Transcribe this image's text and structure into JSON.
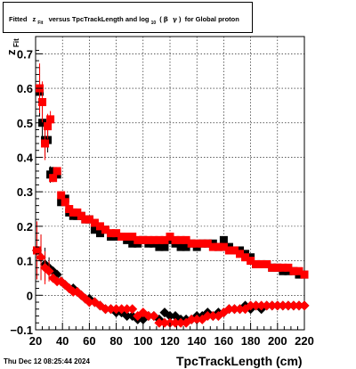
{
  "chart_data": {
    "type": "scatter",
    "title": {
      "prefix": "Fitted",
      "z": "z",
      "z_sub": "Fit",
      "middle": "versus TpcTrackLength and log",
      "log_sub": "10",
      "paren_open": "(",
      "beta": "β",
      "gamma": "γ",
      "paren_close": ")",
      "suffix": "for Global proton"
    },
    "xlabel": "TpcTrackLength (cm)",
    "ylabel": "z",
    "ylabel_sub": "Fit",
    "xlim": [
      20,
      220
    ],
    "ylim": [
      -0.1,
      0.75
    ],
    "x_ticks": [
      20,
      40,
      60,
      80,
      100,
      120,
      140,
      160,
      180,
      200,
      220
    ],
    "y_ticks": [
      -0.1,
      0,
      0.1,
      0.2,
      0.3,
      0.4,
      0.5,
      0.6,
      0.7
    ],
    "y_tick_labels": [
      "−0.1",
      "0",
      "0.1",
      "0.2",
      "0.3",
      "0.4",
      "0.5",
      "0.6",
      "0.7"
    ],
    "grid": true,
    "colors": {
      "black": "#000000",
      "red": "#ff0000"
    },
    "series": [
      {
        "color": "#000000",
        "marker": "square",
        "points": [
          [
            21,
            0.13
          ],
          [
            23,
            0.59
          ],
          [
            25,
            0.5
          ],
          [
            27,
            0.45
          ],
          [
            29,
            0.45
          ],
          [
            31,
            0.35
          ],
          [
            33,
            0.36
          ],
          [
            36,
            0.35
          ],
          [
            39,
            0.27
          ],
          [
            42,
            0.28
          ],
          [
            45,
            0.24
          ],
          [
            48,
            0.23
          ],
          [
            51,
            0.23
          ],
          [
            54,
            0.23
          ],
          [
            57,
            0.22
          ],
          [
            60,
            0.22
          ],
          [
            64,
            0.19
          ],
          [
            68,
            0.18
          ],
          [
            72,
            0.19
          ],
          [
            76,
            0.17
          ],
          [
            80,
            0.17
          ],
          [
            84,
            0.17
          ],
          [
            88,
            0.16
          ],
          [
            92,
            0.15
          ],
          [
            96,
            0.15
          ],
          [
            100,
            0.16
          ],
          [
            104,
            0.15
          ],
          [
            108,
            0.15
          ],
          [
            112,
            0.14
          ],
          [
            116,
            0.14
          ],
          [
            120,
            0.16
          ],
          [
            124,
            0.15
          ],
          [
            128,
            0.14
          ],
          [
            132,
            0.14
          ],
          [
            136,
            0.15
          ],
          [
            140,
            0.14
          ],
          [
            144,
            0.15
          ],
          [
            148,
            0.15
          ],
          [
            152,
            0.15
          ],
          [
            156,
            0.14
          ],
          [
            160,
            0.16
          ],
          [
            164,
            0.14
          ],
          [
            168,
            0.13
          ],
          [
            172,
            0.13
          ],
          [
            176,
            0.12
          ],
          [
            180,
            0.11
          ],
          [
            184,
            0.09
          ],
          [
            188,
            0.09
          ],
          [
            192,
            0.09
          ],
          [
            196,
            0.08
          ],
          [
            200,
            0.08
          ],
          [
            204,
            0.07
          ],
          [
            208,
            0.07
          ],
          [
            212,
            0.07
          ],
          [
            216,
            0.06
          ],
          [
            220,
            0.06
          ]
        ]
      },
      {
        "color": "#ff0000",
        "marker": "square",
        "points": [
          [
            21,
            0.13
          ],
          [
            23,
            0.6
          ],
          [
            25,
            0.56
          ],
          [
            27,
            0.44
          ],
          [
            29,
            0.49
          ],
          [
            31,
            0.51
          ],
          [
            33,
            0.34
          ],
          [
            36,
            0.36
          ],
          [
            39,
            0.29
          ],
          [
            42,
            0.27
          ],
          [
            45,
            0.25
          ],
          [
            48,
            0.24
          ],
          [
            51,
            0.24
          ],
          [
            54,
            0.23
          ],
          [
            57,
            0.22
          ],
          [
            60,
            0.22
          ],
          [
            64,
            0.21
          ],
          [
            68,
            0.2
          ],
          [
            72,
            0.19
          ],
          [
            76,
            0.18
          ],
          [
            80,
            0.18
          ],
          [
            84,
            0.17
          ],
          [
            88,
            0.17
          ],
          [
            92,
            0.17
          ],
          [
            96,
            0.16
          ],
          [
            100,
            0.16
          ],
          [
            104,
            0.16
          ],
          [
            108,
            0.16
          ],
          [
            112,
            0.16
          ],
          [
            116,
            0.16
          ],
          [
            120,
            0.17
          ],
          [
            124,
            0.16
          ],
          [
            128,
            0.16
          ],
          [
            132,
            0.16
          ],
          [
            136,
            0.15
          ],
          [
            140,
            0.15
          ],
          [
            144,
            0.15
          ],
          [
            148,
            0.15
          ],
          [
            152,
            0.14
          ],
          [
            156,
            0.14
          ],
          [
            160,
            0.14
          ],
          [
            164,
            0.13
          ],
          [
            168,
            0.13
          ],
          [
            172,
            0.12
          ],
          [
            176,
            0.11
          ],
          [
            180,
            0.1
          ],
          [
            184,
            0.09
          ],
          [
            188,
            0.09
          ],
          [
            192,
            0.09
          ],
          [
            196,
            0.08
          ],
          [
            200,
            0.08
          ],
          [
            204,
            0.08
          ],
          [
            208,
            0.08
          ],
          [
            212,
            0.07
          ],
          [
            216,
            0.07
          ],
          [
            220,
            0.06
          ]
        ]
      },
      {
        "color": "#000000",
        "marker": "diamond",
        "points": [
          [
            21,
            0.13
          ],
          [
            24,
            0.11
          ],
          [
            27,
            0.09
          ],
          [
            30,
            0.08
          ],
          [
            33,
            0.07
          ],
          [
            36,
            0.06
          ],
          [
            39,
            0.04
          ],
          [
            42,
            0.03
          ],
          [
            45,
            0.02
          ],
          [
            48,
            0.02
          ],
          [
            51,
            0.01
          ],
          [
            54,
            0.0
          ],
          [
            57,
            -0.01
          ],
          [
            60,
            -0.01
          ],
          [
            64,
            -0.02
          ],
          [
            68,
            -0.03
          ],
          [
            72,
            -0.04
          ],
          [
            76,
            -0.04
          ],
          [
            80,
            -0.05
          ],
          [
            84,
            -0.05
          ],
          [
            88,
            -0.06
          ],
          [
            92,
            -0.06
          ],
          [
            96,
            -0.07
          ],
          [
            100,
            -0.07
          ],
          [
            104,
            -0.06
          ],
          [
            108,
            -0.06
          ],
          [
            112,
            -0.07
          ],
          [
            116,
            -0.05
          ],
          [
            120,
            -0.06
          ],
          [
            124,
            -0.06
          ],
          [
            128,
            -0.07
          ],
          [
            132,
            -0.07
          ],
          [
            136,
            -0.07
          ],
          [
            140,
            -0.06
          ],
          [
            144,
            -0.06
          ],
          [
            148,
            -0.05
          ],
          [
            152,
            -0.06
          ],
          [
            156,
            -0.05
          ],
          [
            160,
            -0.05
          ],
          [
            164,
            -0.04
          ],
          [
            168,
            -0.04
          ],
          [
            172,
            -0.04
          ],
          [
            176,
            -0.03
          ],
          [
            180,
            -0.04
          ],
          [
            184,
            -0.03
          ],
          [
            188,
            -0.04
          ],
          [
            192,
            -0.03
          ],
          [
            196,
            -0.03
          ],
          [
            200,
            -0.03
          ],
          [
            204,
            -0.03
          ],
          [
            208,
            -0.03
          ],
          [
            212,
            -0.03
          ],
          [
            216,
            -0.03
          ],
          [
            220,
            -0.03
          ]
        ]
      },
      {
        "color": "#ff0000",
        "marker": "diamond",
        "points": [
          [
            21,
            0.13
          ],
          [
            24,
            0.11
          ],
          [
            27,
            0.08
          ],
          [
            30,
            0.07
          ],
          [
            33,
            0.05
          ],
          [
            36,
            0.04
          ],
          [
            39,
            0.04
          ],
          [
            42,
            0.03
          ],
          [
            45,
            0.02
          ],
          [
            48,
            0.01
          ],
          [
            51,
            0.01
          ],
          [
            54,
            0.0
          ],
          [
            57,
            -0.01
          ],
          [
            60,
            -0.02
          ],
          [
            64,
            -0.02
          ],
          [
            68,
            -0.03
          ],
          [
            72,
            -0.04
          ],
          [
            76,
            -0.04
          ],
          [
            80,
            -0.04
          ],
          [
            84,
            -0.04
          ],
          [
            88,
            -0.04
          ],
          [
            92,
            -0.04
          ],
          [
            96,
            -0.06
          ],
          [
            100,
            -0.05
          ],
          [
            104,
            -0.06
          ],
          [
            108,
            -0.06
          ],
          [
            112,
            -0.08
          ],
          [
            116,
            -0.08
          ],
          [
            120,
            -0.08
          ],
          [
            124,
            -0.08
          ],
          [
            128,
            -0.08
          ],
          [
            132,
            -0.08
          ],
          [
            136,
            -0.07
          ],
          [
            140,
            -0.07
          ],
          [
            144,
            -0.07
          ],
          [
            148,
            -0.06
          ],
          [
            152,
            -0.06
          ],
          [
            156,
            -0.06
          ],
          [
            160,
            -0.05
          ],
          [
            164,
            -0.04
          ],
          [
            168,
            -0.04
          ],
          [
            172,
            -0.04
          ],
          [
            176,
            -0.04
          ],
          [
            180,
            -0.03
          ],
          [
            184,
            -0.03
          ],
          [
            188,
            -0.03
          ],
          [
            192,
            -0.03
          ],
          [
            196,
            -0.03
          ],
          [
            200,
            -0.03
          ],
          [
            204,
            -0.03
          ],
          [
            208,
            -0.03
          ],
          [
            212,
            -0.03
          ],
          [
            216,
            -0.03
          ],
          [
            220,
            -0.03
          ]
        ]
      }
    ]
  },
  "footer": {
    "datetime": "Thu Dec 12 08:25:44 2024"
  }
}
